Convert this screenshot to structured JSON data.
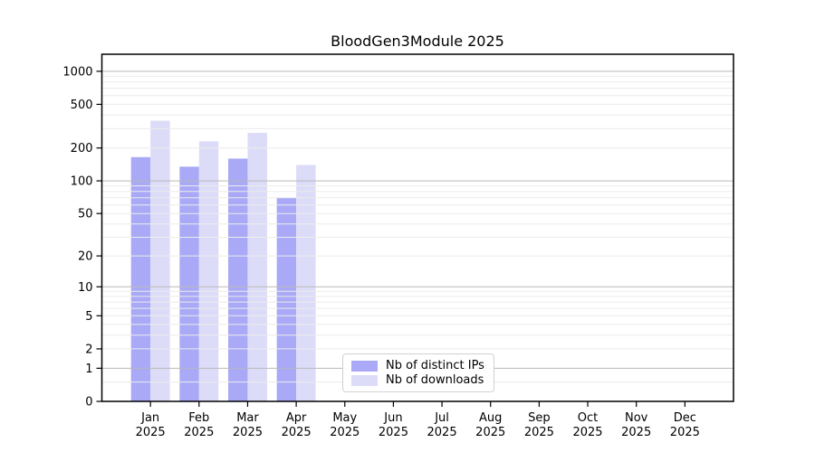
{
  "chart_data": {
    "type": "bar",
    "title": "BloodGen3Module 2025",
    "categories": [
      "Jan\n2025",
      "Feb\n2025",
      "Mar\n2025",
      "Apr\n2025",
      "May\n2025",
      "Jun\n2025",
      "Jul\n2025",
      "Aug\n2025",
      "Sep\n2025",
      "Oct\n2025",
      "Nov\n2025",
      "Dec\n2025"
    ],
    "series": [
      {
        "name": "Nb of distinct IPs",
        "color": "#a9a9f7",
        "values": [
          165,
          135,
          160,
          70,
          null,
          null,
          null,
          null,
          null,
          null,
          null,
          null
        ]
      },
      {
        "name": "Nb of downloads",
        "color": "#dcdcf8",
        "values": [
          355,
          230,
          275,
          140,
          null,
          null,
          null,
          null,
          null,
          null,
          null,
          null
        ]
      }
    ],
    "xlabel": "",
    "ylabel": "",
    "yscale": "log10(value+1)",
    "yticks": [
      0,
      1,
      2,
      5,
      10,
      20,
      50,
      100,
      200,
      500,
      1000
    ],
    "ylim": [
      0,
      1430
    ],
    "grid": {
      "horizontal_major": [
        1,
        10,
        100,
        1000
      ],
      "horizontal_minor": [
        0.5,
        2,
        3,
        4,
        5,
        6,
        7,
        8,
        9,
        20,
        30,
        40,
        50,
        60,
        70,
        80,
        90,
        200,
        300,
        400,
        500,
        600,
        700,
        800,
        900
      ],
      "vertical": false
    },
    "legend_position": "lower center-left, inside plot",
    "colors": {
      "major_gridline": "#b9b9b9",
      "minor_gridline": "#ececec",
      "axis": "#000000",
      "tick_label": "#000000"
    }
  }
}
